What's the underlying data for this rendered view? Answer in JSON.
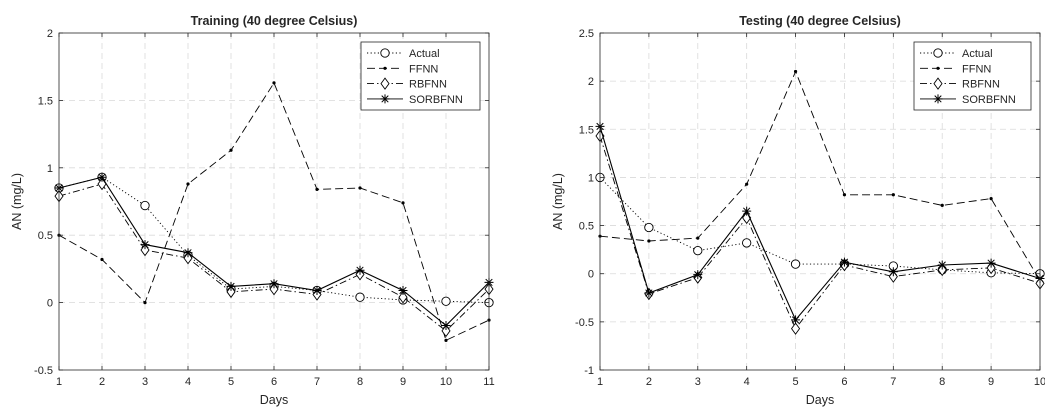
{
  "chart_data": [
    {
      "type": "line",
      "title": "Training (40 degree Celsius)",
      "xlabel": "Days",
      "ylabel": "AN (mg/L)",
      "xlim": [
        1,
        11
      ],
      "ylim": [
        -0.5,
        2
      ],
      "xticks": [
        1,
        2,
        3,
        4,
        5,
        6,
        7,
        8,
        9,
        10,
        11
      ],
      "yticks": [
        -0.5,
        0,
        0.5,
        1,
        1.5,
        2
      ],
      "ytick_labels": [
        "-0.5",
        "0",
        "0.5",
        "1",
        "1.5",
        "2"
      ],
      "grid": true,
      "legend_position": "top-right",
      "x": [
        1,
        2,
        3,
        4,
        5,
        6,
        7,
        8,
        9,
        10,
        11
      ],
      "series": [
        {
          "name": "Actual",
          "style": "dotted",
          "marker": "circle",
          "values": [
            0.85,
            0.93,
            0.72,
            0.35,
            0.1,
            0.12,
            0.09,
            0.04,
            0.02,
            0.01,
            0.0
          ]
        },
        {
          "name": "FFNN",
          "style": "dashed",
          "marker": "dot",
          "values": [
            0.5,
            0.32,
            0.0,
            0.88,
            1.13,
            1.63,
            0.84,
            0.85,
            0.74,
            -0.28,
            -0.13
          ]
        },
        {
          "name": "RBFNN",
          "style": "dashdot",
          "marker": "diamond",
          "values": [
            0.79,
            0.88,
            0.39,
            0.33,
            0.08,
            0.1,
            0.06,
            0.21,
            0.04,
            -0.21,
            0.1
          ]
        },
        {
          "name": "SORBFNN",
          "style": "solid",
          "marker": "asterisk",
          "values": [
            0.85,
            0.93,
            0.43,
            0.37,
            0.12,
            0.14,
            0.09,
            0.24,
            0.09,
            -0.17,
            0.15
          ]
        }
      ]
    },
    {
      "type": "line",
      "title": "Testing (40 degree Celsius)",
      "xlabel": "Days",
      "ylabel": "AN (mg/L)",
      "xlim": [
        1,
        10
      ],
      "ylim": [
        -1,
        2.5
      ],
      "xticks": [
        1,
        2,
        3,
        4,
        5,
        6,
        7,
        8,
        9,
        10
      ],
      "yticks": [
        -1,
        -0.5,
        0,
        0.5,
        1,
        1.5,
        2,
        2.5
      ],
      "ytick_labels": [
        "-1",
        "-0.5",
        "0",
        "0.5",
        "1",
        "1.5",
        "2",
        "2.5"
      ],
      "grid": true,
      "legend_position": "top-right",
      "x": [
        1,
        2,
        3,
        4,
        5,
        6,
        7,
        8,
        9,
        10
      ],
      "series": [
        {
          "name": "Actual",
          "style": "dotted",
          "marker": "circle",
          "values": [
            1.0,
            0.48,
            0.24,
            0.32,
            0.1,
            0.1,
            0.08,
            0.04,
            0.01,
            0.0
          ]
        },
        {
          "name": "FFNN",
          "style": "dashed",
          "marker": "dot",
          "values": [
            0.39,
            0.34,
            0.37,
            0.93,
            2.1,
            0.82,
            0.82,
            0.71,
            0.78,
            -0.07
          ]
        },
        {
          "name": "RBFNN",
          "style": "dashdot",
          "marker": "diamond",
          "values": [
            1.43,
            -0.21,
            -0.04,
            0.58,
            -0.57,
            0.09,
            -0.03,
            0.04,
            0.06,
            -0.1
          ]
        },
        {
          "name": "SORBFNN",
          "style": "solid",
          "marker": "asterisk",
          "values": [
            1.53,
            -0.2,
            -0.01,
            0.65,
            -0.48,
            0.12,
            0.02,
            0.09,
            0.11,
            -0.05
          ]
        }
      ]
    }
  ]
}
